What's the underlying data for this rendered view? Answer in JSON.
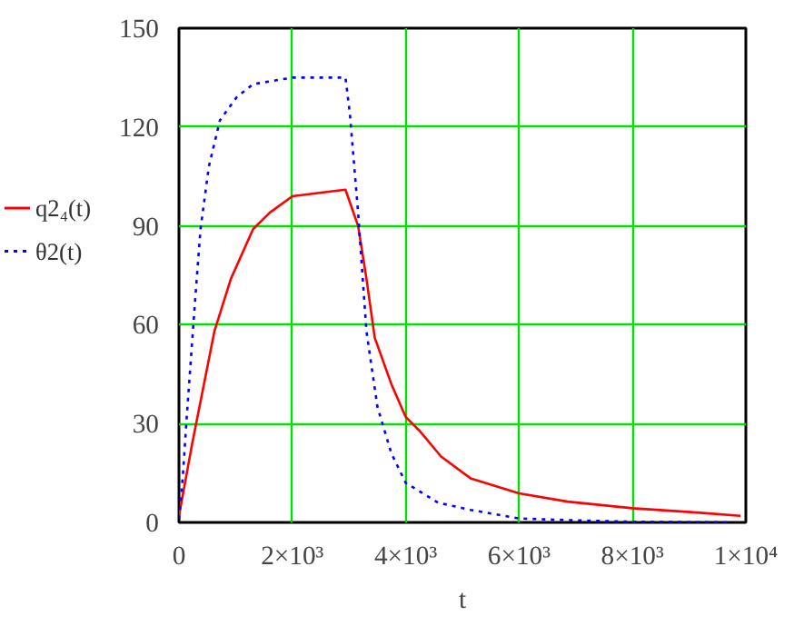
{
  "chart_data": {
    "type": "line",
    "xlabel": "t",
    "legend": "left",
    "grid": true,
    "xlim": [
      0,
      10000
    ],
    "ylim": [
      0,
      150
    ],
    "xticks": [
      0,
      {
        "value": 2000,
        "label": "2×10³"
      },
      {
        "value": 4000,
        "label": "4×10³"
      },
      {
        "value": 6000,
        "label": "6×10³"
      },
      {
        "value": 8000,
        "label": "8×10³"
      },
      {
        "value": 10000,
        "label": "1×10⁴"
      }
    ],
    "yticks": [
      0,
      30,
      60,
      90,
      120,
      150
    ],
    "series": [
      {
        "name": "q2₄(t)",
        "color": "#ff0000",
        "line_style": "solid",
        "x": [
          0,
          234,
          625,
          917,
          1307,
          1600,
          2000,
          2478,
          2937,
          3160,
          3307,
          3454,
          3746,
          4000,
          4234,
          4624,
          5143,
          6000,
          6857,
          8000,
          9143,
          9905
        ],
        "values": [
          2,
          24,
          58,
          74,
          89,
          94,
          99,
          100,
          101,
          90,
          74,
          56,
          42,
          32,
          28,
          20,
          13.4,
          8.8,
          6.3,
          4.3,
          3,
          2
        ]
      },
      {
        "name": "θ2(t)",
        "color": "#0000ff",
        "line_style": "dotted",
        "x": [
          0,
          68,
          137,
          283,
          380,
          527,
          722,
          1015,
          1307,
          2000,
          2937,
          3015,
          3160,
          3307,
          3502,
          3746,
          4000,
          4571,
          5143,
          6000,
          6857,
          8000,
          9714
        ],
        "values": [
          1,
          14,
          32,
          67,
          89,
          108,
          122,
          129,
          133,
          135,
          135,
          124,
          94,
          58,
          35,
          21,
          12,
          6,
          3.8,
          1.2,
          0.7,
          0.2,
          0
        ]
      }
    ]
  }
}
